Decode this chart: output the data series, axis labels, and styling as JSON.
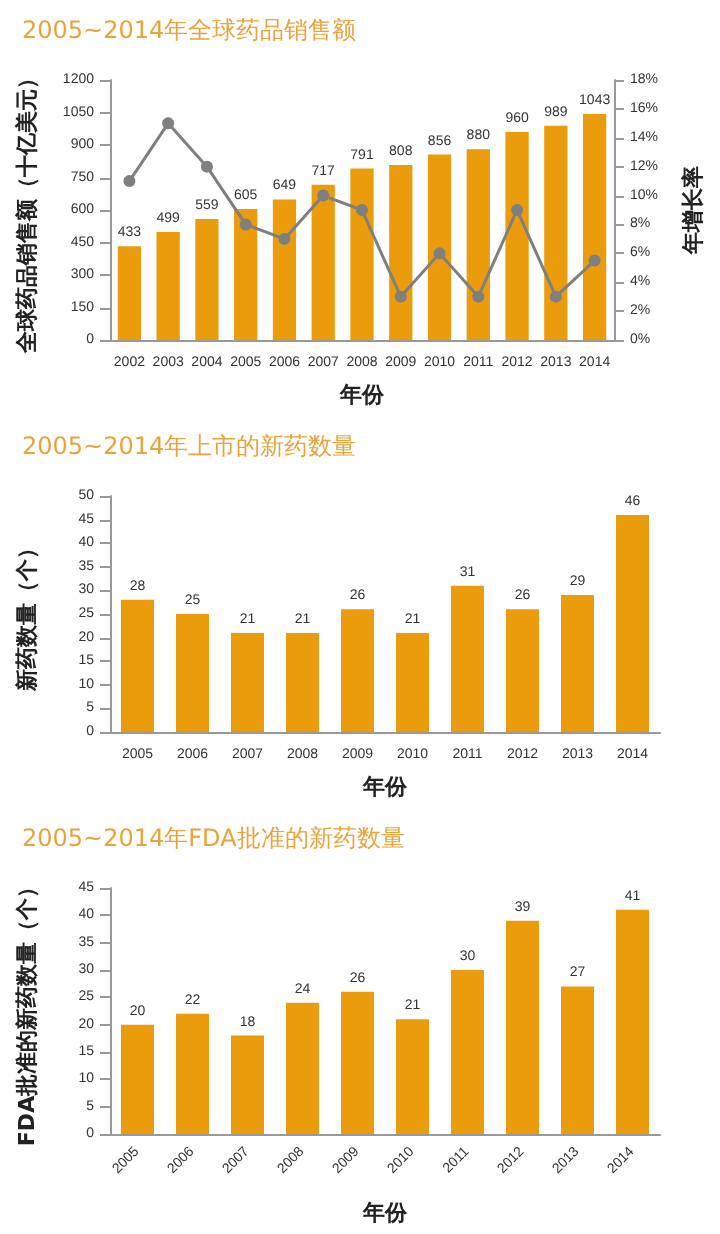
{
  "chart_data": [
    {
      "type": "bar",
      "title": "2005~2014年全球药品销售额",
      "xlabel": "年份",
      "ylabel": "全球药品销售额（十亿美元）",
      "y2label": "年增长率",
      "categories": [
        "2002",
        "2003",
        "2004",
        "2005",
        "2006",
        "2007",
        "2008",
        "2009",
        "2010",
        "2011",
        "2012",
        "2013",
        "2014"
      ],
      "series": [
        {
          "color": "#eb9c0c",
          "values": [
            433,
            499,
            559,
            605,
            649,
            717,
            791,
            808,
            856,
            880,
            960,
            989,
            1043
          ],
          "value_labels": [
            "433",
            "499",
            "559",
            "605",
            "649",
            "717",
            "791",
            "808",
            "856",
            "880",
            "960",
            "989",
            "1043"
          ]
        },
        {
          "type": "line",
          "axis": "y2",
          "color": "#7f7f7f",
          "values": [
            11,
            15,
            12,
            8,
            7,
            10,
            9,
            3,
            6,
            3,
            9,
            3,
            5.5
          ]
        }
      ],
      "marker": "circle",
      "ylim": [
        0,
        1200
      ],
      "yticks": [
        0,
        150,
        300,
        450,
        600,
        750,
        900,
        1050,
        1200
      ],
      "y2lim": [
        0,
        18
      ],
      "y2ticks": [
        {
          "value": 0,
          "label": "0%"
        },
        {
          "value": 2,
          "label": "2%"
        },
        {
          "value": 4,
          "label": "4%"
        },
        {
          "value": 6,
          "label": "6%"
        },
        {
          "value": 8,
          "label": "8%"
        },
        {
          "value": 10,
          "label": "10%"
        },
        {
          "value": 12,
          "label": "12%"
        },
        {
          "value": 14,
          "label": "14%"
        },
        {
          "value": 16,
          "label": "16%"
        },
        {
          "value": 18,
          "label": "18%"
        }
      ]
    },
    {
      "type": "bar",
      "title": "2005~2014年上市的新药数量",
      "xlabel": "年份",
      "ylabel": "新药数量（个）",
      "categories": [
        "2005",
        "2006",
        "2007",
        "2008",
        "2009",
        "2010",
        "2011",
        "2012",
        "2013",
        "2014"
      ],
      "series": [
        {
          "color": "#eb9c0c",
          "values": [
            28,
            25,
            21,
            21,
            26,
            21,
            31,
            26,
            29,
            46
          ]
        }
      ],
      "data_labels": true,
      "ylim": [
        0,
        50
      ],
      "yticks": [
        0,
        5,
        10,
        15,
        20,
        25,
        30,
        35,
        40,
        45,
        50
      ]
    },
    {
      "type": "bar",
      "title": "2005~2014年FDA批准的新药数量",
      "xlabel": "年份",
      "ylabel": "FDA批准的新药数量（个）",
      "categories": [
        "2005",
        "2006",
        "2007",
        "2008",
        "2009",
        "2010",
        "2011",
        "2012",
        "2013",
        "2014"
      ],
      "series": [
        {
          "color": "#eb9c0c",
          "values": [
            20,
            22,
            18,
            24,
            26,
            21,
            30,
            39,
            27,
            41
          ]
        }
      ],
      "data_labels": true,
      "ylim": [
        0,
        45
      ],
      "yticks": [
        0,
        5,
        10,
        15,
        20,
        25,
        30,
        35,
        40,
        45
      ]
    }
  ]
}
